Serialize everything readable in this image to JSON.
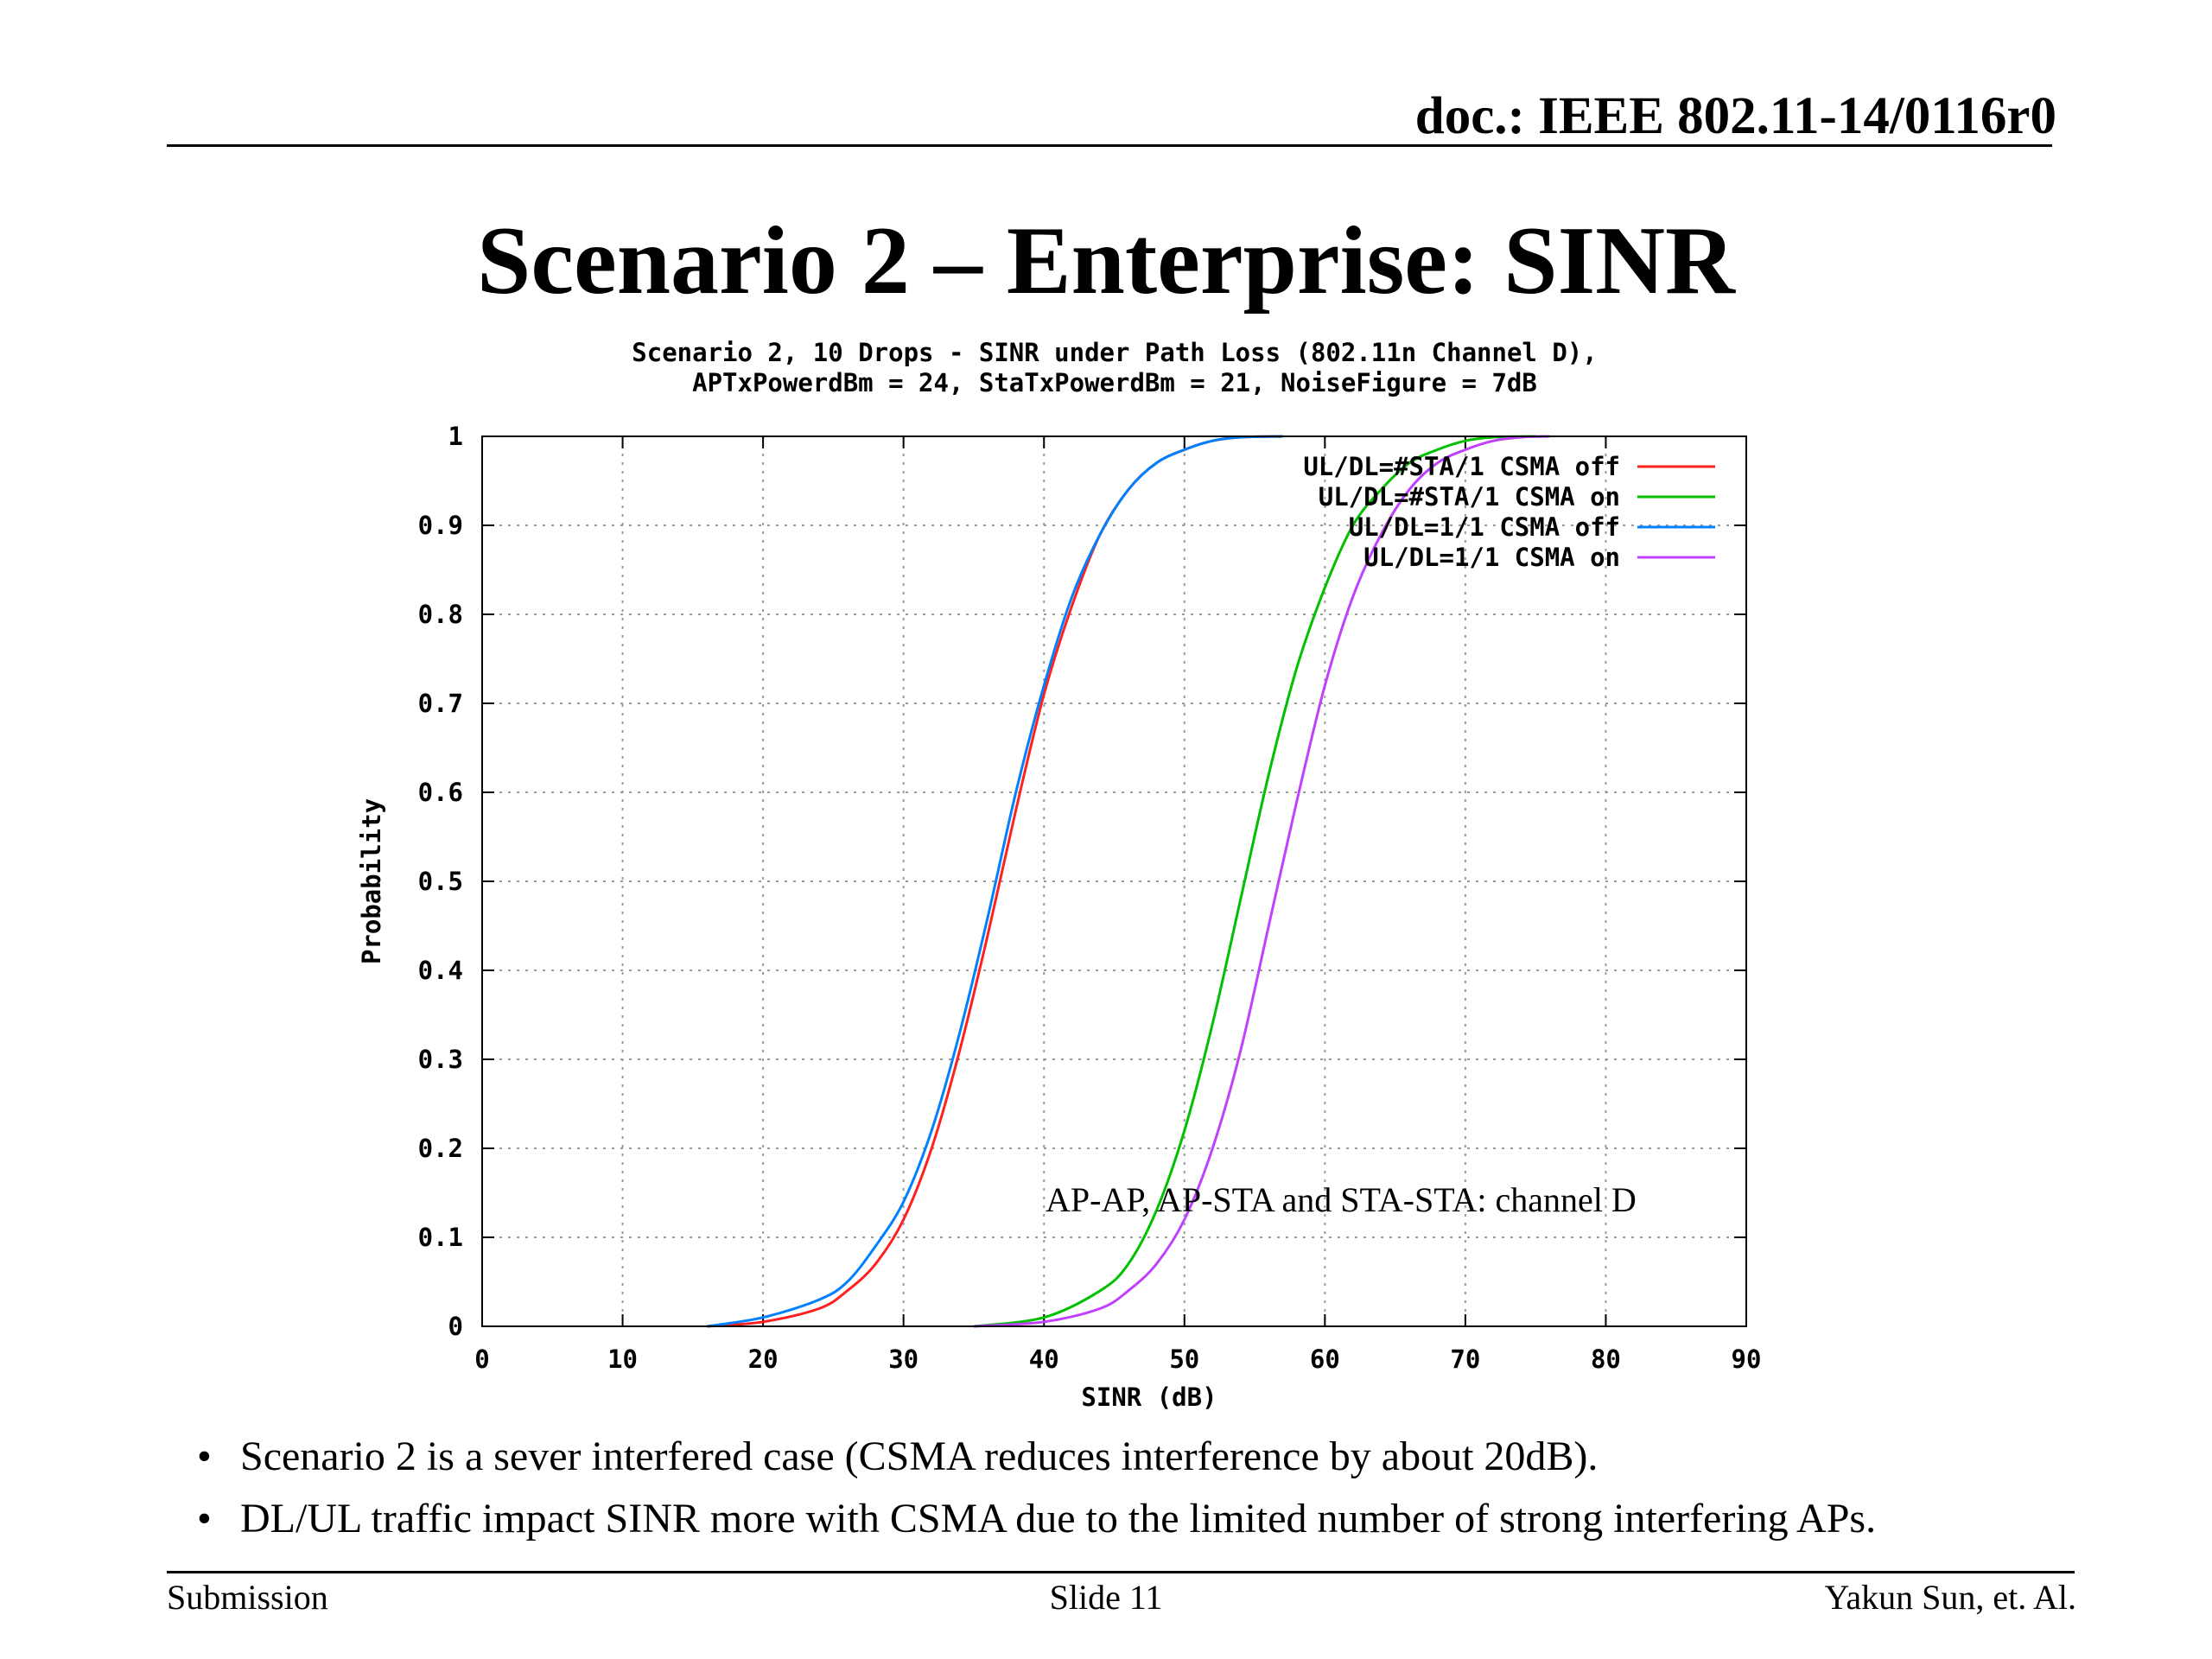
{
  "header": {
    "doc_id": "doc.: IEEE 802.11-14/0116r0",
    "slide_title": "Scenario 2 – Enterprise: SINR"
  },
  "chart_data": {
    "type": "line",
    "title": "Scenario 2, 10 Drops - SINR under Path Loss (802.11n Channel D),",
    "subtitle": "APTxPowerdBm = 24, StaTxPowerdBm = 21, NoiseFigure = 7dB",
    "xlabel": "SINR (dB)",
    "ylabel": "Probability",
    "xlim": [
      0,
      90
    ],
    "ylim": [
      0,
      1
    ],
    "xticks": [
      "0",
      "10",
      "20",
      "30",
      "40",
      "50",
      "60",
      "70",
      "80",
      "90"
    ],
    "yticks": [
      "0",
      "0.1",
      "0.2",
      "0.3",
      "0.4",
      "0.5",
      "0.6",
      "0.7",
      "0.8",
      "0.9",
      "1"
    ],
    "grid": true,
    "legend_position": "top-right",
    "annotation": "AP-AP, AP-STA and STA-STA: channel D",
    "series": [
      {
        "name": "UL/DL=#STA/1 CSMA off",
        "color": "#ff2020",
        "x": [
          16,
          20,
          24,
          26,
          28,
          30,
          32,
          34,
          36,
          38,
          40,
          42,
          44,
          46,
          48,
          50,
          52,
          54,
          57
        ],
        "y": [
          0,
          0.005,
          0.02,
          0.04,
          0.07,
          0.12,
          0.2,
          0.31,
          0.44,
          0.58,
          0.71,
          0.81,
          0.89,
          0.94,
          0.97,
          0.985,
          0.995,
          0.999,
          1
        ]
      },
      {
        "name": "UL/DL=#STA/1 CSMA on",
        "color": "#00c000",
        "x": [
          35,
          40,
          44,
          46,
          48,
          50,
          52,
          54,
          56,
          58,
          60,
          62,
          64,
          66,
          68,
          70,
          72,
          75
        ],
        "y": [
          0,
          0.01,
          0.04,
          0.07,
          0.13,
          0.22,
          0.34,
          0.48,
          0.62,
          0.74,
          0.83,
          0.9,
          0.94,
          0.97,
          0.985,
          0.995,
          0.999,
          1
        ]
      },
      {
        "name": "UL/DL=1/1 CSMA off",
        "color": "#0080ff",
        "x": [
          16,
          20,
          24,
          26,
          28,
          30,
          32,
          34,
          36,
          38,
          40,
          42,
          44,
          46,
          48,
          50,
          52,
          54,
          57
        ],
        "y": [
          0,
          0.01,
          0.03,
          0.05,
          0.09,
          0.14,
          0.22,
          0.33,
          0.46,
          0.6,
          0.72,
          0.82,
          0.89,
          0.94,
          0.97,
          0.985,
          0.995,
          0.999,
          1
        ]
      },
      {
        "name": "UL/DL=1/1 CSMA on",
        "color": "#c040ff",
        "x": [
          35,
          40,
          44,
          46,
          48,
          50,
          52,
          54,
          56,
          58,
          60,
          62,
          64,
          66,
          68,
          70,
          72,
          74,
          76
        ],
        "y": [
          0,
          0.005,
          0.02,
          0.04,
          0.07,
          0.12,
          0.2,
          0.31,
          0.45,
          0.59,
          0.72,
          0.82,
          0.89,
          0.94,
          0.97,
          0.985,
          0.995,
          0.999,
          1
        ]
      }
    ]
  },
  "bullets": [
    "Scenario 2 is a sever interfered case (CSMA reduces interference by about 20dB).",
    "DL/UL traffic impact SINR more with CSMA due to the limited number of strong interfering APs."
  ],
  "footer": {
    "left": "Submission",
    "center": "Slide 11",
    "right": "Yakun Sun, et. Al."
  }
}
